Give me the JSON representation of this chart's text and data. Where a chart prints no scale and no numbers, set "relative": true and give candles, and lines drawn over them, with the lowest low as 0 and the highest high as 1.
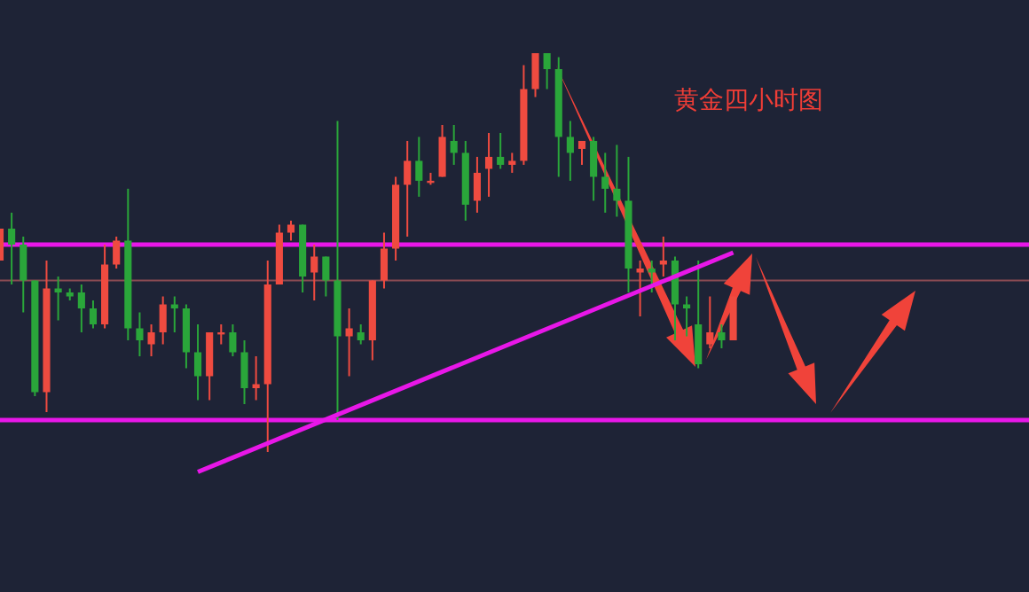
{
  "chart_data": {
    "type": "candlestick",
    "title": "黄金四小时图",
    "relative": true,
    "categories": [
      null,
      null,
      null,
      null,
      null,
      null,
      null,
      null,
      null,
      null,
      null,
      null,
      null,
      null,
      null,
      null,
      null,
      null,
      null,
      null,
      null,
      null,
      null,
      null,
      null,
      null,
      null,
      null,
      null,
      null,
      null,
      null,
      null,
      null,
      null,
      null,
      null,
      null,
      null,
      null,
      null,
      null,
      null,
      null,
      null,
      null,
      null,
      null,
      null,
      null,
      null,
      null,
      null,
      null,
      null,
      null,
      null,
      null,
      null,
      null,
      null,
      null,
      null,
      null
    ],
    "ohlc": [
      [
        0.48,
        0.56,
        0.48,
        0.56
      ],
      [
        0.56,
        0.6,
        0.42,
        0.52
      ],
      [
        0.52,
        0.54,
        0.35,
        0.43
      ],
      [
        0.43,
        0.43,
        0.14,
        0.15
      ],
      [
        0.15,
        0.48,
        0.1,
        0.41
      ],
      [
        0.41,
        0.44,
        0.33,
        0.4
      ],
      [
        0.4,
        0.41,
        0.38,
        0.39
      ],
      [
        0.4,
        0.42,
        0.3,
        0.36
      ],
      [
        0.36,
        0.38,
        0.31,
        0.32
      ],
      [
        0.32,
        0.52,
        0.31,
        0.47
      ],
      [
        0.47,
        0.54,
        0.46,
        0.53
      ],
      [
        0.53,
        0.66,
        0.28,
        0.31
      ],
      [
        0.31,
        0.35,
        0.24,
        0.28
      ],
      [
        0.27,
        0.32,
        0.24,
        0.3
      ],
      [
        0.3,
        0.39,
        0.27,
        0.37
      ],
      [
        0.37,
        0.39,
        0.3,
        0.36
      ],
      [
        0.36,
        0.37,
        0.21,
        0.25
      ],
      [
        0.25,
        0.32,
        0.13,
        0.19
      ],
      [
        0.19,
        0.3,
        0.13,
        0.3
      ],
      [
        0.3,
        0.32,
        0.27,
        0.3
      ],
      [
        0.3,
        0.32,
        0.24,
        0.25
      ],
      [
        0.25,
        0.28,
        0.12,
        0.16
      ],
      [
        0.16,
        0.24,
        0.13,
        0.17
      ],
      [
        0.17,
        0.48,
        0,
        0.42
      ],
      [
        0.42,
        0.57,
        0.42,
        0.55
      ],
      [
        0.55,
        0.58,
        0.53,
        0.57
      ],
      [
        0.57,
        0.57,
        0.4,
        0.44
      ],
      [
        0.45,
        0.52,
        0.38,
        0.49
      ],
      [
        0.49,
        0.49,
        0.39,
        0.43
      ],
      [
        0.43,
        0.83,
        0.08,
        0.29
      ],
      [
        0.29,
        0.36,
        0.19,
        0.31
      ],
      [
        0.3,
        0.32,
        0.27,
        0.28
      ],
      [
        0.28,
        0.43,
        0.23,
        0.43
      ],
      [
        0.43,
        0.55,
        0.41,
        0.51
      ],
      [
        0.51,
        0.69,
        0.48,
        0.67
      ],
      [
        0.67,
        0.78,
        0.54,
        0.73
      ],
      [
        0.73,
        0.79,
        0.64,
        0.68
      ],
      [
        0.68,
        0.7,
        0.67,
        0.68
      ],
      [
        0.69,
        0.82,
        0.69,
        0.79
      ],
      [
        0.78,
        0.82,
        0.72,
        0.75
      ],
      [
        0.75,
        0.78,
        0.58,
        0.62
      ],
      [
        0.63,
        0.74,
        0.6,
        0.7
      ],
      [
        0.71,
        0.8,
        0.64,
        0.74
      ],
      [
        0.74,
        0.8,
        0.71,
        0.72
      ],
      [
        0.72,
        0.75,
        0.7,
        0.73
      ],
      [
        0.73,
        0.97,
        0.72,
        0.91
      ],
      [
        0.91,
        1,
        0.89,
        1
      ],
      [
        1,
        1,
        0.91,
        0.96
      ],
      [
        0.96,
        0.99,
        0.69,
        0.79
      ],
      [
        0.79,
        0.83,
        0.68,
        0.75
      ],
      [
        0.76,
        0.78,
        0.72,
        0.78
      ],
      [
        0.78,
        0.79,
        0.63,
        0.69
      ],
      [
        0.69,
        0.75,
        0.6,
        0.66
      ],
      [
        0.66,
        0.77,
        0.59,
        0.63
      ],
      [
        0.63,
        0.74,
        0.4,
        0.46
      ],
      [
        0.45,
        0.48,
        0.34,
        0.46
      ],
      [
        0.46,
        0.48,
        0.4,
        0.45
      ],
      [
        0.47,
        0.54,
        0.44,
        0.48
      ],
      [
        0.48,
        0.49,
        0.28,
        0.37
      ],
      [
        0.37,
        0.39,
        0.29,
        0.36
      ],
      [
        0.32,
        0.48,
        0.21,
        0.22
      ],
      [
        0.27,
        0.39,
        0.26,
        0.3
      ],
      [
        0.3,
        0.32,
        0.26,
        0.28
      ],
      [
        0.28,
        0.39,
        0.28,
        0.39
      ]
    ],
    "colors": [
      "#ef4b40",
      "#2aa63a",
      "#2aa63a",
      "#2aa63a",
      "#ef4b40",
      "#2aa63a",
      "#2aa63a",
      "#2aa63a",
      "#2aa63a",
      "#ef4b40",
      "#ef4b40",
      "#2aa63a",
      "#2aa63a",
      "#ef4b40",
      "#ef4b40",
      "#2aa63a",
      "#2aa63a",
      "#2aa63a",
      "#ef4b40",
      "#ef4b40",
      "#2aa63a",
      "#2aa63a",
      "#ef4b40",
      "#ef4b40",
      "#ef4b40",
      "#ef4b40",
      "#2aa63a",
      "#ef4b40",
      "#2aa63a",
      "#2aa63a",
      "#ef4b40",
      "#2aa63a",
      "#ef4b40",
      "#ef4b40",
      "#ef4b40",
      "#ef4b40",
      "#2aa63a",
      "#ef4b40",
      "#ef4b40",
      "#2aa63a",
      "#2aa63a",
      "#ef4b40",
      "#ef4b40",
      "#2aa63a",
      "#ef4b40",
      "#ef4b40",
      "#ef4b40",
      "#2aa63a",
      "#2aa63a",
      "#2aa63a",
      "#ef4b40",
      "#2aa63a",
      "#2aa63a",
      "#2aa63a",
      "#2aa63a",
      "#ef4b40",
      "#2aa63a",
      "#ef4b40",
      "#2aa63a",
      "#2aa63a",
      "#2aa63a",
      "#ef4b40",
      "#2aa63a",
      "#ef4b40"
    ],
    "series": [
      {
        "type": "line",
        "color": "#e817e8",
        "values": [
          null,
          null,
          null,
          null,
          null,
          null,
          null,
          null,
          null,
          null,
          null,
          null,
          null,
          null,
          null,
          null,
          null,
          -0.05,
          null,
          null,
          null,
          null,
          null,
          null,
          null,
          null,
          null,
          null,
          null,
          null,
          null,
          null,
          null,
          null,
          null,
          null,
          null,
          null,
          null,
          null,
          null,
          null,
          null,
          null,
          null,
          null,
          null,
          null,
          null,
          null,
          null,
          null,
          null,
          null,
          null,
          null,
          null,
          null,
          null,
          null,
          null,
          null,
          null,
          0.5
        ]
      }
    ],
    "ref_lines": [
      {
        "axis": "y",
        "value": 0.52,
        "color": "#e817e8"
      },
      {
        "axis": "y",
        "value": 0.08,
        "color": "#e817e8"
      },
      {
        "axis": "y",
        "value": 0.43,
        "color": "#8a4a52"
      }
    ]
  }
}
